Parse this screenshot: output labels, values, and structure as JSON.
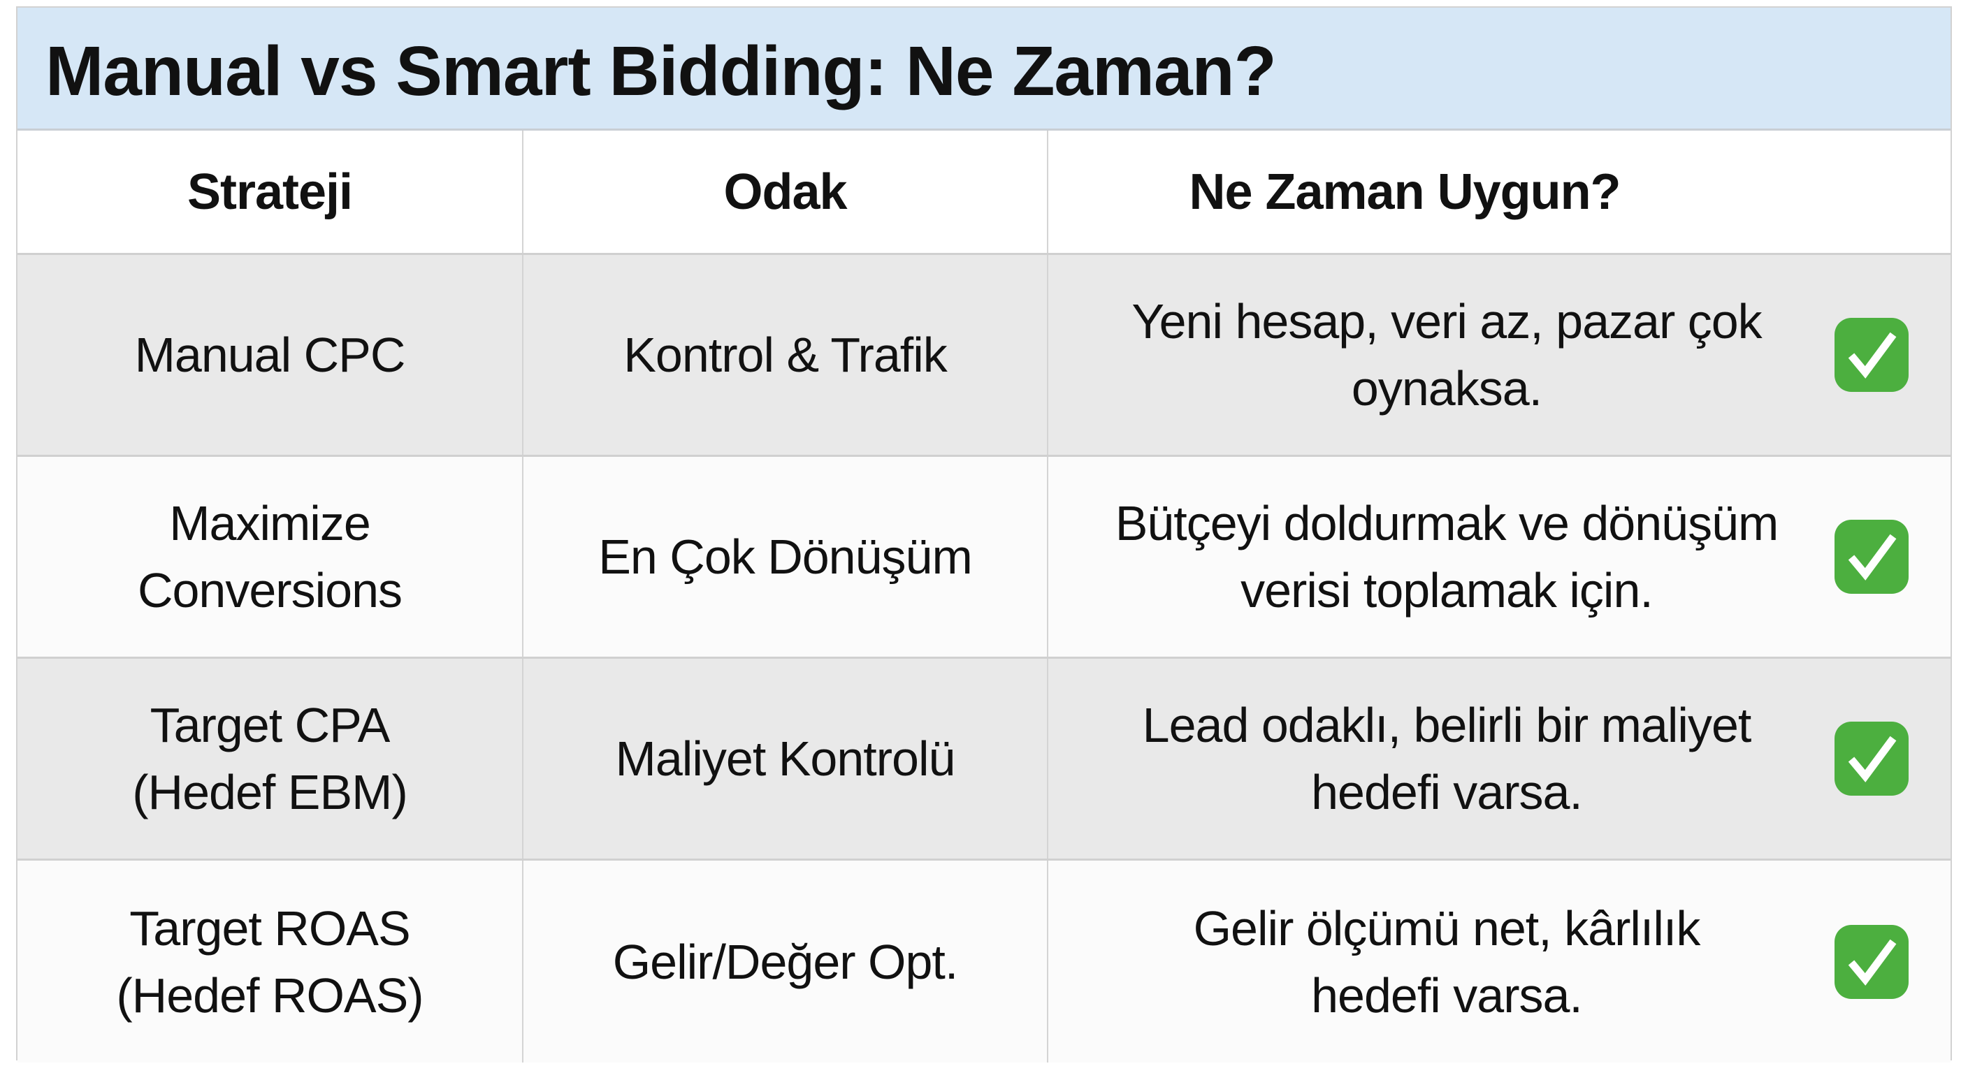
{
  "title": "Manual vs Smart Bidding: Ne Zaman?",
  "colors": {
    "title_bg": "#d6e7f6",
    "row_gray": "#e9e9e9",
    "check_green": "#4caf3f"
  },
  "headers": [
    "Strateji",
    "Odak",
    "Ne Zaman Uygun?"
  ],
  "rows": [
    {
      "strategy": "Manual CPC",
      "focus": "Kontrol & Trafik",
      "when": "Yeni hesap, veri az, pazar çok oynaksa.",
      "icon": "check-mark-button"
    },
    {
      "strategy": "Maximize Conversions",
      "focus": "En Çok Dönüşüm",
      "when": "Bütçeyi doldurmak ve dönüşüm verisi toplamak için.",
      "icon": "check-mark-button"
    },
    {
      "strategy": "Target CPA (Hedef EBM)",
      "focus": "Maliyet Kontrolü",
      "when": "Lead odaklı, belirli bir maliyet hedefi varsa.",
      "icon": "check-mark-button"
    },
    {
      "strategy": "Target ROAS (Hedef ROAS)",
      "focus": "Gelir/Değer Opt.",
      "when": "Gelir ölçümü net, kârlılık hedefi varsa.",
      "icon": "check-mark-button"
    }
  ]
}
